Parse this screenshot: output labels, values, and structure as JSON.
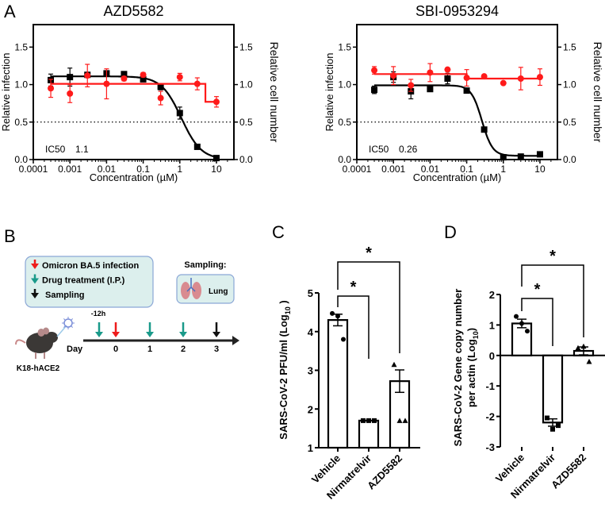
{
  "panel_labels": {
    "a": "A",
    "b": "B",
    "c": "C",
    "d": "D"
  },
  "colors": {
    "infection": "#000000",
    "cell_number": "#ff1a1a",
    "teal": "#1a9a8a",
    "legend_bg": "#dcefed",
    "legend_border": "#8aa6d6",
    "lung": "#d98b90",
    "trachea": "#4a6fc0"
  },
  "chart_data": [
    {
      "type": "line",
      "panel": "A",
      "title": "AZD5582",
      "xlabel": "Concentration (µM)",
      "ylabel": "Relative infection",
      "y2label": "Relative cell number",
      "xscale": "log",
      "xlim": [
        0.0001,
        30
      ],
      "ylim": [
        0,
        1.8
      ],
      "xticks": [
        {
          "v": 0.0001,
          "label": "0.0001"
        },
        {
          "v": 0.001,
          "label": "0.001"
        },
        {
          "v": 0.01,
          "label": "0.01"
        },
        {
          "v": 0.1,
          "label": "0.1"
        },
        {
          "v": 1,
          "label": "1"
        },
        {
          "v": 10,
          "label": "10"
        }
      ],
      "yticks": [
        {
          "v": 0,
          "label": "0.0"
        },
        {
          "v": 0.5,
          "label": "0.5"
        },
        {
          "v": 1,
          "label": "1.0"
        },
        {
          "v": 1.5,
          "label": "1.5"
        }
      ],
      "threshold": 0.5,
      "ic50_label": "IC50",
      "ic50_value": "1.1",
      "x": [
        0.0003,
        0.001,
        0.003,
        0.01,
        0.03,
        0.1,
        0.3,
        1,
        3,
        10
      ],
      "series": [
        {
          "name": "Relative infection",
          "color": "#000000",
          "marker": "square",
          "values": [
            1.06,
            1.1,
            1.13,
            1.15,
            1.14,
            1.07,
            0.97,
            0.62,
            0.17,
            0.02
          ],
          "errors": [
            0.08,
            0.12,
            0.03,
            0.03,
            0.02,
            0.03,
            0.04,
            0.08,
            0.02,
            0.02
          ],
          "fit": {
            "kind": "hill",
            "top": 1.11,
            "bottom": 0.0,
            "ic50": 1.1,
            "hill": 1.6
          }
        },
        {
          "name": "Relative cell number",
          "color": "#ff1a1a",
          "marker": "circle",
          "values": [
            0.95,
            0.88,
            1.12,
            1.01,
            1.08,
            1.13,
            0.82,
            1.1,
            1.01,
            0.77
          ],
          "errors": [
            0.12,
            0.12,
            0.15,
            0.2,
            0.03,
            0.03,
            0.09,
            0.05,
            0.08,
            0.07
          ],
          "fit": {
            "kind": "step",
            "levels": [
              1.01,
              0.77
            ],
            "break": 5
          }
        }
      ]
    },
    {
      "type": "line",
      "panel": "A",
      "title": "SBI-0953294",
      "xlabel": "Concentration (µM)",
      "ylabel": "Relative infection",
      "y2label": "Relative cell number",
      "xscale": "log",
      "xlim": [
        0.0001,
        30
      ],
      "ylim": [
        0,
        1.8
      ],
      "xticks": [
        {
          "v": 0.0001,
          "label": "0.0001"
        },
        {
          "v": 0.001,
          "label": "0.001"
        },
        {
          "v": 0.01,
          "label": "0.01"
        },
        {
          "v": 0.1,
          "label": "0.1"
        },
        {
          "v": 1,
          "label": "1"
        },
        {
          "v": 10,
          "label": "10"
        }
      ],
      "yticks": [
        {
          "v": 0,
          "label": "0.0"
        },
        {
          "v": 0.5,
          "label": "0.5"
        },
        {
          "v": 1,
          "label": "1.0"
        },
        {
          "v": 1.5,
          "label": "1.5"
        }
      ],
      "threshold": 0.5,
      "ic50_label": "IC50",
      "ic50_value": "0.26",
      "x": [
        0.0003,
        0.001,
        0.003,
        0.01,
        0.03,
        0.1,
        0.3,
        1,
        3,
        10
      ],
      "series": [
        {
          "name": "Relative infection",
          "color": "#000000",
          "marker": "square",
          "values": [
            0.93,
            1.1,
            0.91,
            0.94,
            1.08,
            0.92,
            0.4,
            0.03,
            0.04,
            0.07
          ],
          "errors": [
            0.05,
            0.07,
            0.1,
            0.03,
            0.07,
            0.02,
            0.02,
            0.01,
            0.01,
            0.02
          ],
          "fit": {
            "kind": "hill",
            "top": 0.99,
            "bottom": 0.05,
            "ic50": 0.26,
            "hill": 3
          }
        },
        {
          "name": "Relative cell number",
          "color": "#ff1a1a",
          "marker": "circle",
          "values": [
            1.19,
            1.12,
            0.99,
            1.16,
            1.2,
            1.09,
            1.11,
            1.02,
            1.08,
            1.1
          ],
          "errors": [
            0.05,
            0.12,
            0.08,
            0.12,
            0.02,
            0.11,
            0.02,
            0.01,
            0.15,
            0.11
          ],
          "fit": {
            "kind": "step",
            "levels": [
              1.14,
              1.08
            ],
            "break": 0.1
          }
        }
      ]
    },
    {
      "type": "bar",
      "panel": "C",
      "ylabel": "SARS-CoV-2 PFU/ml (Log",
      "ylabel_sub": "10",
      "ylabel_end": " )",
      "categories": [
        "Vehicle",
        "Nirmatrelvir",
        "AZD5582"
      ],
      "values": [
        4.3,
        1.7,
        2.72
      ],
      "sem": [
        0.15,
        0.0,
        0.29
      ],
      "points": [
        [
          4.47,
          4.4,
          3.8
        ],
        [
          1.7,
          1.7,
          1.7
        ],
        [
          3.15,
          1.7,
          1.7
        ]
      ],
      "markers": [
        "circle",
        "square",
        "triangle"
      ],
      "ylim": [
        1,
        5
      ],
      "yticks": [
        {
          "v": 1,
          "label": "1"
        },
        {
          "v": 2,
          "label": "2"
        },
        {
          "v": 3,
          "label": "3"
        },
        {
          "v": 4,
          "label": "4"
        },
        {
          "v": 5,
          "label": "5"
        }
      ],
      "significance": [
        {
          "from": 0,
          "to": 1,
          "label": "*"
        },
        {
          "from": 0,
          "to": 2,
          "label": "*"
        }
      ]
    },
    {
      "type": "bar",
      "panel": "D",
      "ylabel": "SARS-CoV-2 Gene copy number",
      "ylabel2": "per actin (Log",
      "ylabel_sub": "10",
      "ylabel_end": ")",
      "categories": [
        "Vehicle",
        "Nirmatrelvir",
        "AZD5582"
      ],
      "values": [
        1.05,
        -2.2,
        0.15
      ],
      "sem": [
        0.14,
        0.12,
        0.13
      ],
      "points": [
        [
          1.28,
          1.05,
          0.8
        ],
        [
          -2.05,
          -2.42,
          -2.3
        ],
        [
          0.25,
          0.3,
          -0.2
        ]
      ],
      "markers": [
        "circle",
        "square",
        "triangle"
      ],
      "ylim": [
        -3,
        2
      ],
      "yticks": [
        {
          "v": -3,
          "label": "-3"
        },
        {
          "v": -2,
          "label": "-2"
        },
        {
          "v": -1,
          "label": "-1"
        },
        {
          "v": 0,
          "label": "0"
        },
        {
          "v": 1,
          "label": "1"
        },
        {
          "v": 2,
          "label": "2"
        }
      ],
      "significance": [
        {
          "from": 0,
          "to": 1,
          "label": "*"
        },
        {
          "from": 0,
          "to": 2,
          "label": "*"
        }
      ]
    }
  ],
  "diagram_b": {
    "legend": [
      {
        "label": "Omicron BA.5 infection",
        "color": "red"
      },
      {
        "label": "Drug treatment (I.P.)",
        "color": "teal"
      },
      {
        "label": "Sampling",
        "color": "black"
      }
    ],
    "sampling_title": "Sampling:",
    "sampling_tissue": "Lung",
    "mouse_label": "K18-hACE2",
    "day_label": "Day",
    "pre_label": "-12h",
    "timeline": [
      {
        "day": "",
        "arrow": "teal",
        "pre": true
      },
      {
        "day": "0",
        "arrow": "red"
      },
      {
        "day": "1",
        "arrow": "teal"
      },
      {
        "day": "2",
        "arrow": "teal"
      },
      {
        "day": "3",
        "arrow": "black"
      }
    ]
  }
}
